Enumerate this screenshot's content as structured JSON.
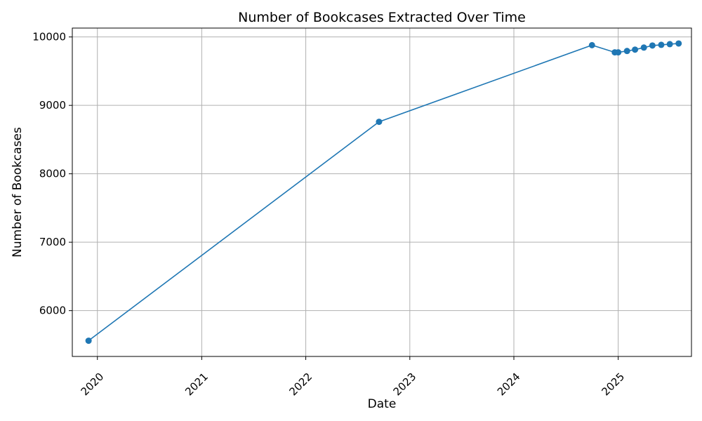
{
  "chart_data": {
    "type": "line",
    "title": "Number of Bookcases Extracted Over Time",
    "xlabel": "Date",
    "ylabel": "Number of Bookcases",
    "x_axis_type": "date",
    "xlim": [
      "2019-10-05",
      "2025-09-15"
    ],
    "ylim": [
      5330,
      10130
    ],
    "x_ticks": [
      {
        "date": "2020-01-01",
        "label": "2020"
      },
      {
        "date": "2021-01-01",
        "label": "2021"
      },
      {
        "date": "2022-01-01",
        "label": "2022"
      },
      {
        "date": "2023-01-01",
        "label": "2023"
      },
      {
        "date": "2024-01-01",
        "label": "2024"
      },
      {
        "date": "2025-01-01",
        "label": "2025"
      }
    ],
    "y_ticks": [
      6000,
      7000,
      8000,
      9000,
      10000
    ],
    "grid": true,
    "color": "#1f77b4",
    "marker": "circle",
    "series": [
      {
        "x": [
          "2019-12-01",
          "2022-09-15",
          "2024-10-01",
          "2024-12-20",
          "2025-01-01",
          "2025-02-01",
          "2025-03-01",
          "2025-04-01",
          "2025-05-01",
          "2025-06-01",
          "2025-07-01",
          "2025-08-01"
        ],
        "values": [
          5560,
          8760,
          9880,
          9775,
          9775,
          9795,
          9815,
          9845,
          9875,
          9885,
          9895,
          9905
        ]
      }
    ]
  }
}
